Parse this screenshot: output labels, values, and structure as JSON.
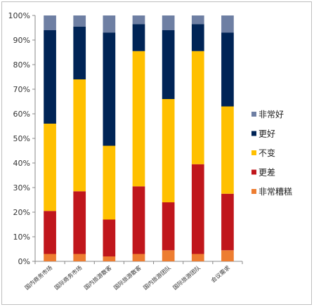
{
  "chart_data": {
    "type": "bar",
    "stacked": true,
    "percent": true,
    "title": "",
    "xlabel": "",
    "ylabel": "",
    "ylim": [
      0,
      100
    ],
    "y_tick_format": "%",
    "y_ticks": [
      0,
      10,
      20,
      30,
      40,
      50,
      60,
      70,
      80,
      90,
      100
    ],
    "grid": false,
    "legend_position": "right",
    "categories": [
      "国内商务市场",
      "国际商务市场",
      "国内旅游散客",
      "国际旅游散客",
      "国内旅游团队",
      "国际旅游团队",
      "会议需求"
    ],
    "series": [
      {
        "name": "非常糟糕",
        "color": "#ED7D31",
        "values": [
          3,
          3,
          2,
          3,
          4.5,
          3,
          4.5
        ]
      },
      {
        "name": "更差",
        "color": "#C0161C",
        "values": [
          17.5,
          25.5,
          15,
          27.5,
          19.5,
          36.5,
          23
        ]
      },
      {
        "name": "不变",
        "color": "#FFC000",
        "values": [
          35.5,
          45.5,
          30,
          55,
          42,
          46,
          35.5
        ]
      },
      {
        "name": "更好",
        "color": "#002456",
        "values": [
          38,
          21.5,
          46,
          11,
          28,
          11,
          30
        ]
      },
      {
        "name": "非常好",
        "color": "#6E7FA3",
        "values": [
          6,
          4.5,
          7,
          3.5,
          6,
          3.5,
          7
        ]
      }
    ]
  }
}
